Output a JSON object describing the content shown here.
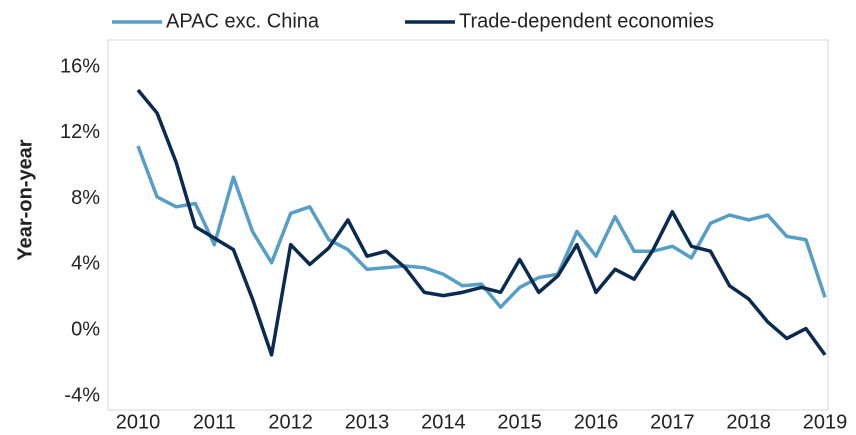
{
  "chart_data": {
    "type": "line",
    "y_label": "Year-on-year",
    "x": [
      2010,
      2010.25,
      2010.5,
      2010.75,
      2011,
      2011.25,
      2011.5,
      2011.75,
      2012,
      2012.25,
      2012.5,
      2012.75,
      2013,
      2013.25,
      2013.5,
      2013.75,
      2014,
      2014.25,
      2014.5,
      2014.75,
      2015,
      2015.25,
      2015.5,
      2015.75,
      2016,
      2016.25,
      2016.5,
      2016.75,
      2017,
      2017.25,
      2017.5,
      2017.75,
      2018,
      2018.25,
      2018.5,
      2018.75,
      2019
    ],
    "series": [
      {
        "name": "APAC exc. China",
        "color": "#559ec6",
        "values": [
          11.2,
          8.1,
          7.5,
          7.7,
          5.2,
          9.3,
          6.0,
          4.1,
          7.1,
          7.5,
          5.5,
          4.9,
          3.7,
          3.8,
          3.9,
          3.8,
          3.4,
          2.7,
          2.8,
          1.4,
          2.6,
          3.2,
          3.4,
          6.0,
          4.5,
          6.9,
          4.8,
          4.8,
          5.1,
          4.4,
          6.5,
          7.0,
          6.7,
          7.0,
          5.7,
          5.5,
          2.0
        ]
      },
      {
        "name": "Trade-dependent economies",
        "color": "#0b2a4f",
        "values": [
          14.6,
          13.2,
          10.2,
          6.3,
          5.6,
          4.9,
          1.9,
          -1.5,
          5.2,
          4.0,
          5.0,
          6.7,
          4.5,
          4.8,
          3.8,
          2.3,
          2.1,
          2.3,
          2.6,
          2.3,
          4.3,
          2.3,
          3.3,
          5.2,
          2.3,
          3.7,
          3.1,
          4.9,
          7.2,
          5.1,
          4.8,
          2.7,
          1.9,
          0.5,
          -0.5,
          0.1,
          -1.5
        ]
      }
    ],
    "xlim": [
      2010,
      2019
    ],
    "xticks": [
      2010,
      2011,
      2012,
      2013,
      2014,
      2015,
      2016,
      2017,
      2018,
      2019
    ],
    "ylim": [
      -4,
      16
    ],
    "yticks": [
      {
        "value": -4,
        "label": "-4%"
      },
      {
        "value": 0,
        "label": "0%"
      },
      {
        "value": 4,
        "label": "4%"
      },
      {
        "value": 8,
        "label": "8%"
      },
      {
        "value": 12,
        "label": "12%"
      },
      {
        "value": 16,
        "label": "16%"
      }
    ],
    "legend": "top",
    "grid": false
  }
}
